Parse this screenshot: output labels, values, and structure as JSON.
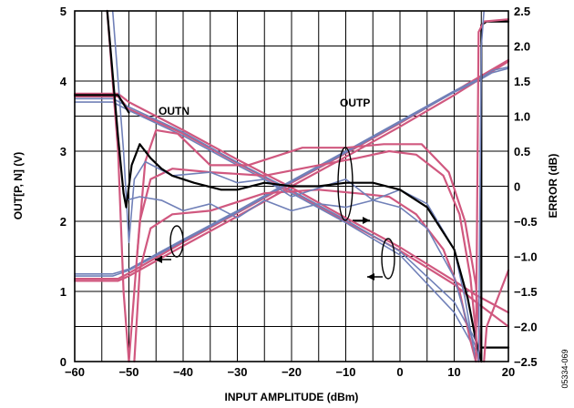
{
  "chart_data": {
    "type": "line",
    "title": "",
    "xlabel": "INPUT AMPLITUDE (dBm)",
    "ylabel_left": "OUT[P, N] (V)",
    "ylabel_right": "ERROR (dB)",
    "xlim": [
      -60,
      20
    ],
    "ylim_left": [
      0,
      5
    ],
    "ylim_right": [
      -2.5,
      2.5
    ],
    "x_ticks": [
      "−60",
      "−50",
      "−40",
      "−30",
      "−20",
      "−10",
      "0",
      "10",
      "20"
    ],
    "y_left_ticks": [
      "0",
      "1",
      "2",
      "3",
      "4",
      "5"
    ],
    "y_right_ticks": [
      "−2.5",
      "−2.0",
      "−1.5",
      "−1.0",
      "−0.5",
      "0",
      "0.5",
      "1.0",
      "1.5",
      "2.0",
      "2.5"
    ],
    "grid": true,
    "annotations": [
      "OUTN",
      "OUTP"
    ],
    "figure_id": "05334-069",
    "colors": {
      "pink": "#d0587f",
      "blue": "#7080b8",
      "black": "#000000"
    },
    "series": [
      {
        "axis": "left",
        "color": "pink",
        "points": [
          [
            -60,
            3.82
          ],
          [
            -52,
            3.82
          ],
          [
            -50,
            3.7
          ],
          [
            -40,
            3.3
          ],
          [
            -30,
            2.88
          ],
          [
            -20,
            2.48
          ],
          [
            -10,
            2.05
          ],
          [
            0,
            1.63
          ],
          [
            10,
            1.15
          ],
          [
            14,
            0.95
          ],
          [
            20,
            0.7
          ]
        ]
      },
      {
        "axis": "left",
        "color": "pink",
        "points": [
          [
            -60,
            3.78
          ],
          [
            -52,
            3.78
          ],
          [
            -50,
            3.6
          ],
          [
            -40,
            3.25
          ],
          [
            -30,
            2.83
          ],
          [
            -20,
            2.43
          ],
          [
            -10,
            2.0
          ],
          [
            0,
            1.58
          ],
          [
            10,
            1.1
          ],
          [
            14,
            0.85
          ],
          [
            20,
            0.5
          ]
        ]
      },
      {
        "axis": "left",
        "color": "blue",
        "points": [
          [
            -60,
            3.7
          ],
          [
            -53,
            3.7
          ],
          [
            -50,
            3.58
          ],
          [
            -40,
            3.22
          ],
          [
            -30,
            2.8
          ],
          [
            -20,
            2.4
          ],
          [
            -10,
            1.98
          ],
          [
            0,
            1.52
          ],
          [
            10,
            0.7
          ],
          [
            14,
            0.15
          ],
          [
            15,
            0.0
          ]
        ]
      },
      {
        "axis": "left",
        "color": "blue",
        "points": [
          [
            -60,
            3.75
          ],
          [
            -53,
            3.75
          ],
          [
            -50,
            3.63
          ],
          [
            -40,
            3.27
          ],
          [
            -30,
            2.84
          ],
          [
            -20,
            2.44
          ],
          [
            -10,
            2.02
          ],
          [
            0,
            1.57
          ],
          [
            10,
            0.85
          ],
          [
            14,
            0.3
          ],
          [
            15,
            0.05
          ]
        ]
      },
      {
        "axis": "left",
        "color": "pink",
        "points": [
          [
            -60,
            1.15
          ],
          [
            -52,
            1.15
          ],
          [
            -50,
            1.22
          ],
          [
            -40,
            1.65
          ],
          [
            -30,
            2.07
          ],
          [
            -20,
            2.5
          ],
          [
            -10,
            2.92
          ],
          [
            0,
            3.35
          ],
          [
            10,
            3.8
          ],
          [
            20,
            4.28
          ]
        ]
      },
      {
        "axis": "left",
        "color": "pink",
        "points": [
          [
            -60,
            1.18
          ],
          [
            -52,
            1.18
          ],
          [
            -50,
            1.26
          ],
          [
            -40,
            1.7
          ],
          [
            -30,
            2.12
          ],
          [
            -20,
            2.55
          ],
          [
            -10,
            2.97
          ],
          [
            0,
            3.4
          ],
          [
            10,
            3.85
          ],
          [
            20,
            4.3
          ]
        ]
      },
      {
        "axis": "left",
        "color": "blue",
        "points": [
          [
            -60,
            1.25
          ],
          [
            -53,
            1.25
          ],
          [
            -50,
            1.32
          ],
          [
            -40,
            1.74
          ],
          [
            -30,
            2.15
          ],
          [
            -20,
            2.58
          ],
          [
            -10,
            3.0
          ],
          [
            0,
            3.43
          ],
          [
            10,
            3.86
          ],
          [
            15,
            4.05
          ],
          [
            17,
            4.15
          ],
          [
            20,
            4.2
          ]
        ]
      },
      {
        "axis": "left",
        "color": "blue",
        "points": [
          [
            -60,
            1.22
          ],
          [
            -53,
            1.22
          ],
          [
            -50,
            1.3
          ],
          [
            -40,
            1.72
          ],
          [
            -30,
            2.13
          ],
          [
            -20,
            2.56
          ],
          [
            -10,
            2.98
          ],
          [
            0,
            3.41
          ],
          [
            10,
            3.84
          ],
          [
            15,
            4.03
          ],
          [
            17,
            4.12
          ],
          [
            20,
            4.18
          ]
        ]
      },
      {
        "axis": "right",
        "color": "pink",
        "points": [
          [
            -54,
            2.5
          ],
          [
            -52,
            0.5
          ],
          [
            -51,
            -1.5
          ],
          [
            -50,
            -2.5
          ]
        ]
      },
      {
        "axis": "right",
        "color": "pink",
        "points": [
          [
            -50,
            -2.5
          ],
          [
            -49,
            -1.5
          ],
          [
            -48,
            -0.5
          ],
          [
            -46,
            0.1
          ],
          [
            -42,
            0.25
          ],
          [
            -35,
            0.2
          ],
          [
            -25,
            0.15
          ],
          [
            -15,
            0.3
          ],
          [
            -8,
            0.4
          ],
          [
            -2,
            0.5
          ],
          [
            3,
            0.45
          ],
          [
            8,
            0.15
          ],
          [
            11,
            -0.4
          ],
          [
            13,
            -1.3
          ],
          [
            14.5,
            -2.5
          ]
        ]
      },
      {
        "axis": "right",
        "color": "pink",
        "points": [
          [
            -49,
            -2.5
          ],
          [
            -48,
            -1.2
          ],
          [
            -46,
            -0.6
          ],
          [
            -42,
            -0.4
          ],
          [
            -35,
            -0.35
          ],
          [
            -25,
            -0.1
          ],
          [
            -15,
            -0.05
          ],
          [
            -8,
            -0.1
          ],
          [
            -2,
            -0.15
          ],
          [
            3,
            -0.4
          ],
          [
            8,
            -0.9
          ],
          [
            11,
            -1.5
          ],
          [
            13,
            -2.2
          ],
          [
            14,
            -2.5
          ]
        ]
      },
      {
        "axis": "right",
        "color": "pink",
        "points": [
          [
            -48.5,
            -1.0
          ],
          [
            -47,
            0.35
          ],
          [
            -45,
            0.8
          ],
          [
            -41,
            0.75
          ],
          [
            -35,
            0.3
          ],
          [
            -28,
            0.3
          ],
          [
            -18,
            0.55
          ],
          [
            -10,
            0.55
          ],
          [
            -3,
            0.6
          ],
          [
            4,
            0.6
          ],
          [
            9,
            0.2
          ],
          [
            12,
            -0.5
          ],
          [
            14,
            -1.4
          ],
          [
            15,
            -2.5
          ]
        ]
      },
      {
        "axis": "right",
        "color": "blue",
        "points": [
          [
            -53,
            2.5
          ],
          [
            -51,
            0.5
          ],
          [
            -50,
            -0.8
          ],
          [
            -49,
            0.1
          ],
          [
            -47,
            0.35
          ],
          [
            -42,
            0.15
          ],
          [
            -35,
            0.2
          ],
          [
            -30,
            0.05
          ],
          [
            -25,
            0.1
          ],
          [
            -20,
            -0.15
          ],
          [
            -10,
            0.1
          ],
          [
            -5,
            -0.2
          ],
          [
            0,
            -0.05
          ],
          [
            5,
            -0.25
          ],
          [
            10,
            -0.9
          ],
          [
            12,
            -1.6
          ],
          [
            14,
            -2.5
          ]
        ]
      },
      {
        "axis": "right",
        "color": "blue",
        "points": [
          [
            -50.5,
            -0.2
          ],
          [
            -48,
            -0.15
          ],
          [
            -44,
            -0.2
          ],
          [
            -40,
            -0.35
          ],
          [
            -35,
            -0.25
          ],
          [
            -30,
            -0.45
          ],
          [
            -25,
            -0.2
          ],
          [
            -20,
            -0.35
          ],
          [
            -15,
            -0.25
          ],
          [
            -10,
            -0.3
          ],
          [
            -5,
            -0.2
          ],
          [
            0,
            -0.3
          ],
          [
            5,
            -0.6
          ],
          [
            10,
            -1.3
          ],
          [
            13,
            -2.1
          ],
          [
            15,
            -2.5
          ]
        ]
      },
      {
        "axis": "right",
        "color": "black",
        "points": [
          [
            -54,
            2.5
          ],
          [
            -52,
            0.7
          ],
          [
            -51,
            -0.1
          ],
          [
            -50.5,
            -0.3
          ],
          [
            -49.5,
            0.3
          ],
          [
            -48,
            0.6
          ],
          [
            -46,
            0.4
          ],
          [
            -44,
            0.25
          ],
          [
            -42,
            0.15
          ],
          [
            -38,
            0.05
          ],
          [
            -33,
            -0.05
          ],
          [
            -30,
            -0.05
          ],
          [
            -25,
            0.05
          ],
          [
            -20,
            0.0
          ],
          [
            -15,
            0.0
          ],
          [
            -10,
            0.05
          ],
          [
            -5,
            0.05
          ],
          [
            0,
            -0.05
          ],
          [
            5,
            -0.3
          ],
          [
            10,
            -0.9
          ],
          [
            12.5,
            -1.6
          ],
          [
            14,
            -2.2
          ],
          [
            15,
            -2.5
          ]
        ]
      },
      {
        "axis": "right",
        "color": "black",
        "points": [
          [
            -60,
            1.3
          ],
          [
            -52,
            1.3
          ],
          [
            -50,
            1.05
          ]
        ]
      },
      {
        "axis": "right",
        "color": "black",
        "points": [
          [
            15,
            -2.3
          ],
          [
            17,
            -2.3
          ],
          [
            20,
            -2.3
          ]
        ]
      },
      {
        "axis": "right",
        "color": "black",
        "points": [
          [
            15,
            -2.5
          ],
          [
            15,
            2.3
          ],
          [
            16,
            2.35
          ],
          [
            20,
            2.35
          ]
        ]
      },
      {
        "axis": "right",
        "color": "pink",
        "points": [
          [
            14,
            -2.5
          ],
          [
            14.5,
            2.2
          ],
          [
            15.5,
            2.35
          ],
          [
            20,
            2.38
          ]
        ]
      },
      {
        "axis": "right",
        "color": "pink",
        "points": [
          [
            15.5,
            -2.5
          ],
          [
            16,
            -2.0
          ],
          [
            20,
            -1.2
          ]
        ]
      },
      {
        "axis": "right",
        "color": "blue",
        "points": [
          [
            14.5,
            -2.5
          ],
          [
            15,
            2.0
          ],
          [
            15.5,
            2.5
          ]
        ]
      }
    ]
  }
}
